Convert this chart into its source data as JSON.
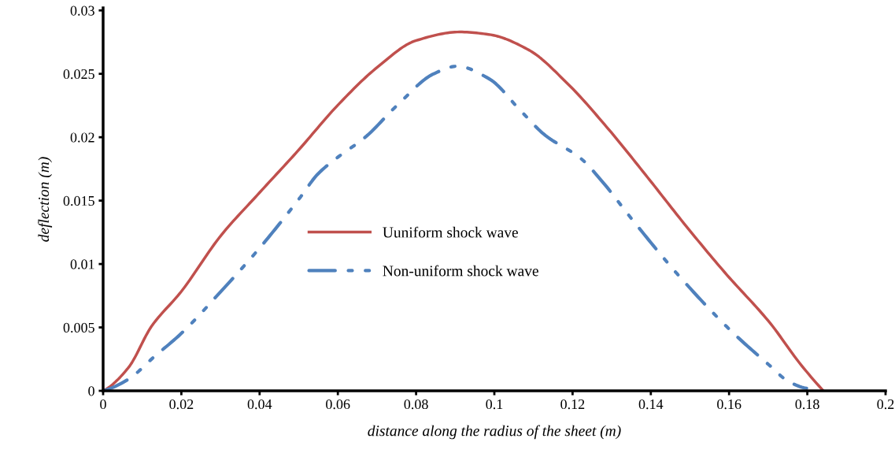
{
  "chart_data": {
    "type": "line",
    "xlabel": "distance along the radius of the sheet (m)",
    "ylabel": "deflection (m)",
    "xlim": [
      0,
      0.2
    ],
    "xticks": [
      0,
      0.02,
      0.04,
      0.06,
      0.08,
      0.1,
      0.12,
      0.14,
      0.16,
      0.18,
      0.2
    ],
    "ylim": [
      0,
      0.0302
    ],
    "yticks": [
      0,
      0.005,
      0.01,
      0.015,
      0.02,
      0.025,
      0.03
    ],
    "grid": false,
    "legend": "center",
    "marker": "none",
    "series": [
      {
        "name": "Uuniform shock wave",
        "color": "#c0504d",
        "line_style": "solid",
        "x": [
          0,
          0.0064,
          0.0124,
          0.0199,
          0.03,
          0.0399,
          0.05,
          0.0599,
          0.0704,
          0.0798,
          0.0912,
          0.0987,
          0.1087,
          0.1188,
          0.129,
          0.139,
          0.149,
          0.159,
          0.1706,
          0.178,
          0.1841
        ],
        "values": [
          0,
          0.0018,
          0.0051,
          0.0078,
          0.0122,
          0.0156,
          0.019,
          0.0225,
          0.0256,
          0.0276,
          0.0283,
          0.0281,
          0.0269,
          0.0242,
          0.0207,
          0.0169,
          0.013,
          0.0093,
          0.0053,
          0.0022,
          0
        ]
      },
      {
        "name": "Non-uniform shock wave",
        "color": "#4f81bd",
        "line_style": "dashed",
        "x": [
          0,
          0.0064,
          0.0131,
          0.0199,
          0.03,
          0.0401,
          0.05,
          0.0549,
          0.0599,
          0.067,
          0.0751,
          0.0845,
          0.0905,
          0.0987,
          0.1067,
          0.1128,
          0.1222,
          0.1276,
          0.135,
          0.1471,
          0.1606,
          0.17,
          0.1754,
          0.1798
        ],
        "values": [
          0,
          0.0009,
          0.0027,
          0.0045,
          0.0078,
          0.0113,
          0.0151,
          0.0171,
          0.0184,
          0.02,
          0.0225,
          0.025,
          0.0256,
          0.0246,
          0.0221,
          0.0202,
          0.0183,
          0.0165,
          0.0136,
          0.0091,
          0.0047,
          0.0021,
          0.0007,
          0.0002
        ]
      }
    ]
  }
}
